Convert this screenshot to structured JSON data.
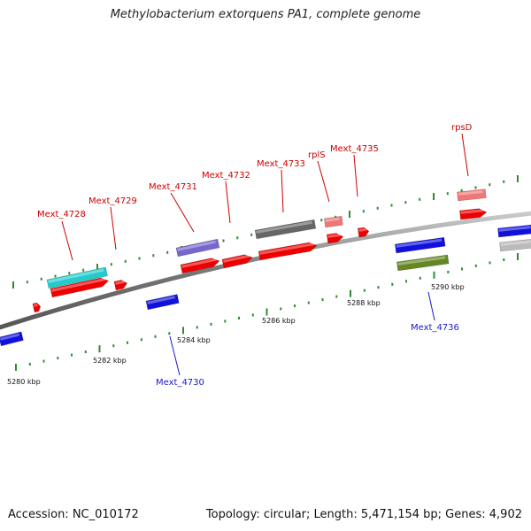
{
  "title": "Methylobacterium extorquens PA1, complete genome",
  "footer": {
    "accession": "Accession: NC_010172",
    "topology": "Topology: circular; Length: 5,471,154 bp; Genes: 4,902"
  },
  "colors": {
    "backbone": "#7a7a7a",
    "tick": "#2e8b2e",
    "label_forward": "#cc0000",
    "label_reverse": "#1a1acc",
    "label_line_forward": "#cc0000",
    "label_line_reverse": "#1a1acc"
  },
  "scale_labels": [
    "5280 kbp",
    "5282 kbp",
    "5284 kbp",
    "5286 kbp",
    "5288 kbp",
    "5290 kbp"
  ],
  "gene_labels": [
    {
      "text": "Mext_4728",
      "strand": "forward"
    },
    {
      "text": "Mext_4729",
      "strand": "forward"
    },
    {
      "text": "Mext_4731",
      "strand": "forward"
    },
    {
      "text": "Mext_4732",
      "strand": "forward"
    },
    {
      "text": "Mext_4733",
      "strand": "forward"
    },
    {
      "text": "rplS",
      "strand": "forward"
    },
    {
      "text": "Mext_4735",
      "strand": "forward"
    },
    {
      "text": "rpsD",
      "strand": "forward"
    },
    {
      "text": "Mext_4730",
      "strand": "reverse"
    },
    {
      "text": "Mext_4736",
      "strand": "reverse"
    }
  ],
  "features": [
    {
      "name": "cds-forward-1",
      "color": "#ee0000"
    },
    {
      "name": "cds-forward-2",
      "color": "#ee0000"
    },
    {
      "name": "cds-forward-3",
      "color": "#ee0000"
    },
    {
      "name": "cds-forward-4",
      "color": "#ee0000"
    },
    {
      "name": "cds-forward-5",
      "color": "#ee0000"
    },
    {
      "name": "cds-forward-6",
      "color": "#ee0000"
    },
    {
      "name": "cds-forward-7",
      "color": "#ee0000"
    },
    {
      "name": "cds-forward-8",
      "color": "#ee0000"
    },
    {
      "name": "cds-forward-9",
      "color": "#ee0000"
    },
    {
      "name": "cds-reverse-1",
      "color": "#1111dd"
    },
    {
      "name": "cds-reverse-2",
      "color": "#1111dd"
    },
    {
      "name": "cds-reverse-3",
      "color": "#1111dd"
    },
    {
      "name": "cds-reverse-4",
      "color": "#1111dd"
    },
    {
      "name": "cog-forward-cyan",
      "color": "#22cccc"
    },
    {
      "name": "cog-forward-purple",
      "color": "#7766cc"
    },
    {
      "name": "cog-forward-gray",
      "color": "#666666"
    },
    {
      "name": "cog-forward-pink-1",
      "color": "#ee7777"
    },
    {
      "name": "cog-forward-pink-2",
      "color": "#ee7777"
    },
    {
      "name": "cog-reverse-olive",
      "color": "#668822"
    },
    {
      "name": "cog-reverse-lightgray",
      "color": "#bbbbbb"
    }
  ]
}
